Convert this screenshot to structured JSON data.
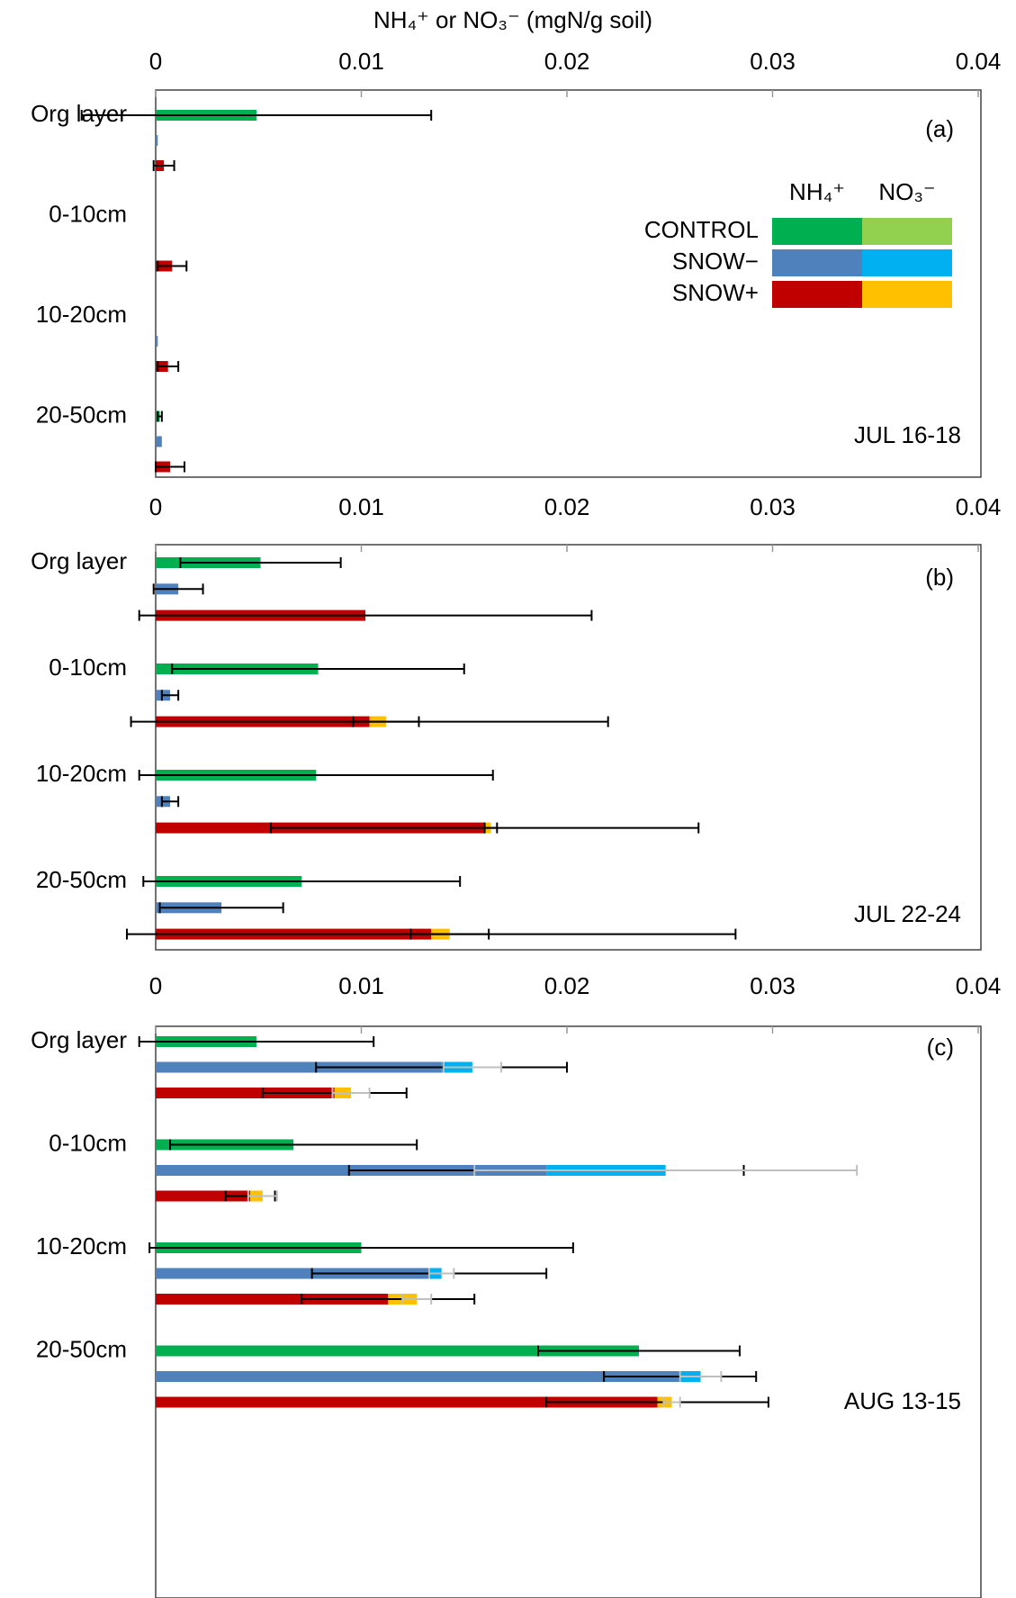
{
  "chart_data": [
    {
      "type": "bar",
      "x_label": "NH₄⁺ or NO₃⁻ (mgN/g soil)",
      "panel_label": "(a)",
      "date": "JUL 16-18",
      "legend_columns": [
        "NH₄⁺",
        "NO₃⁻"
      ],
      "categories": [
        "Org layer",
        "0-10cm",
        "10-20cm",
        "20-50cm"
      ],
      "xlim": [
        0,
        0.04
      ],
      "xticks": [
        0,
        0.01,
        0.02,
        0.03,
        0.04
      ],
      "no3_err_color": "#000000",
      "series": [
        {
          "name": "CONTROL",
          "colors": [
            "#00b050",
            "#92d050"
          ],
          "nh4": [
            0.0049,
            0,
            0,
            0.0002
          ],
          "nh4_err": [
            0.0085,
            0,
            0,
            0.0001
          ],
          "no3": [
            0,
            0,
            0,
            0
          ],
          "no3_err": [
            0,
            0,
            0,
            0
          ]
        },
        {
          "name": "SNOW−",
          "colors": [
            "#4f81bd",
            "#00b0f0"
          ],
          "nh4": [
            0.0001,
            0,
            0.0001,
            0.0003
          ],
          "nh4_err": [
            0,
            0,
            0,
            0
          ],
          "no3": [
            0,
            0,
            0,
            0
          ],
          "no3_err": [
            0,
            0,
            0,
            0
          ]
        },
        {
          "name": "SNOW+",
          "colors": [
            "#c00000",
            "#ffc000"
          ],
          "nh4": [
            0.0004,
            0.0008,
            0.0006,
            0.0007
          ],
          "nh4_err": [
            0.0005,
            0.0007,
            0.0005,
            0.0007
          ],
          "no3": [
            0,
            0,
            0,
            0
          ],
          "no3_err": [
            0,
            0,
            0,
            0
          ]
        }
      ]
    },
    {
      "type": "bar",
      "panel_label": "(b)",
      "date": "JUL 22-24",
      "categories": [
        "Org layer",
        "0-10cm",
        "10-20cm",
        "20-50cm"
      ],
      "xlim": [
        0,
        0.04
      ],
      "xticks": [
        0,
        0.01,
        0.02,
        0.03,
        0.04
      ],
      "no3_err_color": "#000000",
      "series": [
        {
          "name": "CONTROL",
          "colors": [
            "#00b050",
            "#92d050"
          ],
          "nh4": [
            0.0051,
            0.0079,
            0.0078,
            0.0071
          ],
          "nh4_err": [
            0.0039,
            0.0071,
            0.0086,
            0.0077
          ],
          "no3": [
            0,
            0,
            0,
            0
          ],
          "no3_err": [
            0,
            0,
            0,
            0
          ]
        },
        {
          "name": "SNOW−",
          "colors": [
            "#4f81bd",
            "#00b0f0"
          ],
          "nh4": [
            0.0011,
            0.0007,
            0.0007,
            0.0032
          ],
          "nh4_err": [
            0.0012,
            0.0004,
            0.0004,
            0.003
          ],
          "no3": [
            0,
            0,
            0,
            0
          ],
          "no3_err": [
            0,
            0,
            0,
            0
          ]
        },
        {
          "name": "SNOW+",
          "colors": [
            "#c00000",
            "#ffc000"
          ],
          "nh4": [
            0.0102,
            0.0104,
            0.016,
            0.0134
          ],
          "nh4_err": [
            0.011,
            0.0116,
            0.0104,
            0.0148
          ],
          "no3": [
            0,
            0.0008,
            0.0003,
            0.0009
          ],
          "no3_err": [
            0,
            0.0016,
            0.0003,
            0.0019
          ]
        }
      ]
    },
    {
      "type": "bar",
      "panel_label": "(c)",
      "date": "AUG 13-15",
      "categories": [
        "Org layer",
        "0-10cm",
        "10-20cm",
        "20-50cm"
      ],
      "xlim": [
        0,
        0.04
      ],
      "xticks": [
        0,
        0.01,
        0.02,
        0.03,
        0.04
      ],
      "no3_err_color": "#bfbfbf",
      "series": [
        {
          "name": "CONTROL",
          "colors": [
            "#00b050",
            "#92d050"
          ],
          "nh4": [
            0.0049,
            0.0067,
            0.01,
            0.0235
          ],
          "nh4_err": [
            0.0057,
            0.006,
            0.0103,
            0.0049
          ],
          "no3": [
            0,
            0,
            0,
            0
          ],
          "no3_err": [
            0,
            0,
            0,
            0
          ]
        },
        {
          "name": "SNOW−",
          "colors": [
            "#4f81bd",
            "#00b0f0"
          ],
          "nh4": [
            0.0139,
            0.019,
            0.0133,
            0.0255
          ],
          "nh4_err": [
            0.0061,
            0.0096,
            0.0057,
            0.0037
          ],
          "no3": [
            0.0015,
            0.0058,
            0.0006,
            0.001
          ],
          "no3_err": [
            0.0014,
            0.0093,
            0.0006,
            0.001
          ]
        },
        {
          "name": "SNOW+",
          "colors": [
            "#c00000",
            "#ffc000"
          ],
          "nh4": [
            0.0087,
            0.0046,
            0.0113,
            0.0244
          ],
          "nh4_err": [
            0.0035,
            0.0012,
            0.0042,
            0.0054
          ],
          "no3": [
            0.0008,
            0.0006,
            0.0014,
            0.0007
          ],
          "no3_err": [
            0.0009,
            0.0007,
            0.0007,
            0.0004
          ]
        }
      ]
    }
  ]
}
